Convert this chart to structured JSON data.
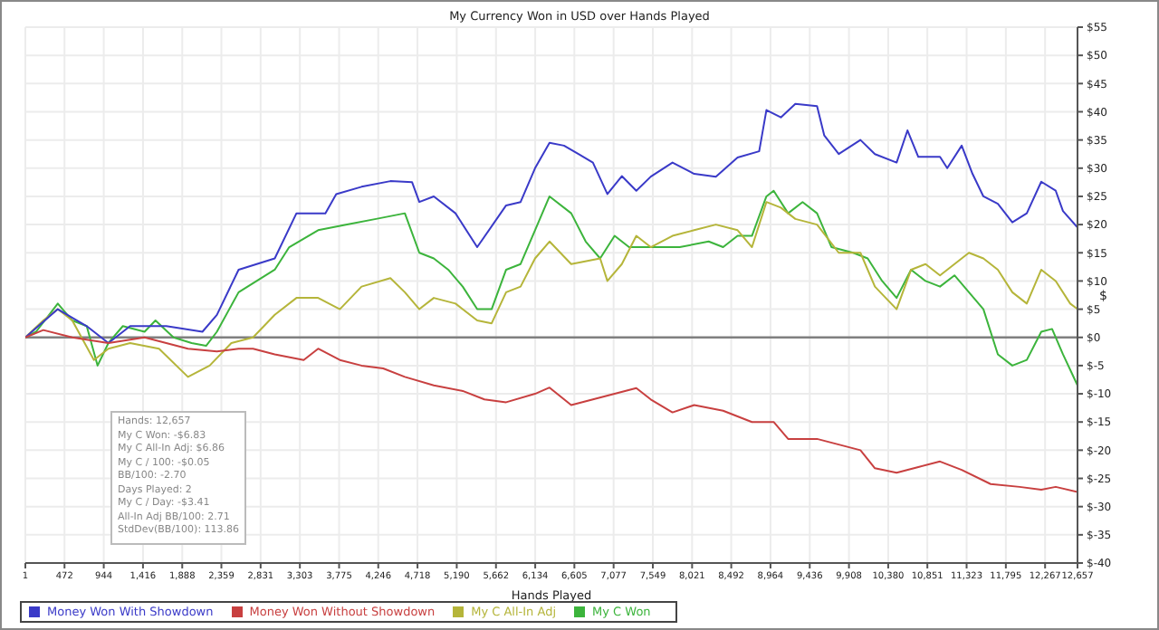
{
  "chart_data": {
    "type": "line",
    "title": "My Currency Won in USD over Hands Played",
    "xlabel": "Hands Played",
    "ylabel": "$",
    "xlim": [
      1,
      12657
    ],
    "xticks": [
      {
        "value": 1,
        "label": "1"
      },
      {
        "value": 472,
        "label": "472"
      },
      {
        "value": 944,
        "label": "944"
      },
      {
        "value": 1416,
        "label": "1,416"
      },
      {
        "value": 1888,
        "label": "1,888"
      },
      {
        "value": 2359,
        "label": "2,359"
      },
      {
        "value": 2831,
        "label": "2,831"
      },
      {
        "value": 3303,
        "label": "3,303"
      },
      {
        "value": 3775,
        "label": "3,775"
      },
      {
        "value": 4246,
        "label": "4,246"
      },
      {
        "value": 4718,
        "label": "4,718"
      },
      {
        "value": 5190,
        "label": "5,190"
      },
      {
        "value": 5662,
        "label": "5,662"
      },
      {
        "value": 6134,
        "label": "6,134"
      },
      {
        "value": 6605,
        "label": "6,605"
      },
      {
        "value": 7077,
        "label": "7,077"
      },
      {
        "value": 7549,
        "label": "7,549"
      },
      {
        "value": 8021,
        "label": "8,021"
      },
      {
        "value": 8492,
        "label": "8,492"
      },
      {
        "value": 8964,
        "label": "8,964"
      },
      {
        "value": 9436,
        "label": "9,436"
      },
      {
        "value": 9908,
        "label": "9,908"
      },
      {
        "value": 10380,
        "label": "10,380"
      },
      {
        "value": 10851,
        "label": "10,851"
      },
      {
        "value": 11323,
        "label": "11,323"
      },
      {
        "value": 11795,
        "label": "11,795"
      },
      {
        "value": 12267,
        "label": "12,267"
      },
      {
        "value": 12657,
        "label": "12,657"
      }
    ],
    "ylim": [
      -40,
      55
    ],
    "yticks": [
      {
        "value": -40,
        "label": "$-40"
      },
      {
        "value": -35,
        "label": "$-35"
      },
      {
        "value": -30,
        "label": "$-30"
      },
      {
        "value": -25,
        "label": "$-25"
      },
      {
        "value": -20,
        "label": "$-20"
      },
      {
        "value": -15,
        "label": "$-15"
      },
      {
        "value": -10,
        "label": "$-10"
      },
      {
        "value": -5,
        "label": "$-5"
      },
      {
        "value": 0,
        "label": "$0"
      },
      {
        "value": 5,
        "label": "$5"
      },
      {
        "value": 10,
        "label": "$10"
      },
      {
        "value": 15,
        "label": "$15"
      },
      {
        "value": 20,
        "label": "$20"
      },
      {
        "value": 25,
        "label": "$25"
      },
      {
        "value": 30,
        "label": "$30"
      },
      {
        "value": 35,
        "label": "$35"
      },
      {
        "value": 40,
        "label": "$40"
      },
      {
        "value": 45,
        "label": "$45"
      },
      {
        "value": 50,
        "label": "$50"
      },
      {
        "value": 55,
        "label": "$55"
      }
    ],
    "grid": true,
    "legend": "bottom left",
    "marker": "none",
    "line_style": "solid",
    "ref_lines": [
      {
        "axis": "y",
        "value": 0,
        "color": "#808080"
      }
    ],
    "series": [
      {
        "name": "My C Won",
        "color": "#3cb43c",
        "x": [
          1,
          130,
          391,
          565,
          739,
          870,
          1000,
          1174,
          1435,
          1566,
          1783,
          2001,
          2175,
          2305,
          2566,
          3001,
          3175,
          3523,
          3871,
          4219,
          4566,
          4740,
          4914,
          5088,
          5262,
          5436,
          5610,
          5784,
          5958,
          6132,
          6306,
          6567,
          6741,
          6915,
          7089,
          7263,
          7524,
          7872,
          8220,
          8394,
          8568,
          8741,
          8915,
          9002,
          9176,
          9350,
          9524,
          9698,
          9959,
          10133,
          10307,
          10481,
          10655,
          10829,
          11003,
          11177,
          11351,
          11525,
          11699,
          11873,
          12047,
          12221,
          12351,
          12482,
          12657
        ],
        "values": [
          0,
          1,
          6,
          3,
          2,
          -5,
          -1,
          2,
          1,
          3,
          0,
          -1,
          -1.5,
          1,
          8,
          12,
          16,
          19,
          20,
          21,
          22,
          15,
          14,
          12,
          9,
          5,
          5,
          12,
          13,
          19,
          25,
          22,
          17,
          14,
          18,
          16,
          16,
          16,
          17,
          16,
          18,
          18,
          25,
          26,
          22,
          24,
          22,
          16,
          15,
          14,
          10,
          7,
          12,
          10,
          9,
          11,
          8,
          5,
          -3,
          -5,
          -4,
          1,
          1.5,
          -3,
          -8.5
        ]
      },
      {
        "name": "My C All-In Adj",
        "color": "#b5b53a",
        "x": [
          1,
          217,
          391,
          565,
          826,
          1000,
          1261,
          1609,
          1957,
          2218,
          2479,
          2740,
          3001,
          3262,
          3523,
          3784,
          4045,
          4392,
          4566,
          4740,
          4914,
          5175,
          5436,
          5610,
          5784,
          5958,
          6132,
          6306,
          6567,
          6915,
          7002,
          7176,
          7350,
          7524,
          7785,
          8046,
          8307,
          8568,
          8741,
          8915,
          9089,
          9263,
          9524,
          9785,
          10046,
          10220,
          10481,
          10655,
          10829,
          11003,
          11177,
          11351,
          11525,
          11699,
          11873,
          12047,
          12221,
          12395,
          12569,
          12657
        ],
        "values": [
          0,
          3,
          5,
          3,
          -4,
          -2,
          -1,
          -2,
          -7,
          -5,
          -1,
          0,
          4,
          7,
          7,
          5,
          9,
          10.5,
          8,
          5,
          7,
          6,
          3,
          2.5,
          8,
          9,
          14,
          17,
          13,
          14,
          10,
          13,
          18,
          16,
          18,
          19,
          20,
          19,
          16,
          24,
          23,
          21,
          20,
          15,
          15,
          9,
          5,
          12,
          13,
          11,
          13,
          15,
          14,
          12,
          8,
          6,
          12,
          10,
          6,
          5
        ]
      },
      {
        "name": "Money Won With Showdown",
        "color": "#3a3ac8",
        "x": [
          1,
          391,
          739,
          1000,
          1261,
          1696,
          2131,
          2305,
          2566,
          3001,
          3262,
          3610,
          3740,
          4045,
          4392,
          4653,
          4740,
          4914,
          5175,
          5436,
          5784,
          5958,
          6132,
          6306,
          6480,
          6654,
          6828,
          7002,
          7176,
          7350,
          7524,
          7785,
          8046,
          8307,
          8568,
          8828,
          8915,
          9089,
          9263,
          9524,
          9611,
          9785,
          10046,
          10220,
          10481,
          10612,
          10742,
          11003,
          11090,
          11264,
          11394,
          11525,
          11699,
          11873,
          12047,
          12221,
          12395,
          12482,
          12657
        ],
        "values": [
          0,
          5,
          2,
          -1,
          2,
          2,
          1,
          4,
          12,
          14,
          22,
          22,
          25.4,
          26.7,
          27.7,
          27.5,
          24,
          25,
          22,
          16,
          23.4,
          24,
          30,
          34.5,
          34,
          32.5,
          31,
          25.4,
          28.6,
          26,
          28.5,
          31,
          29,
          28.5,
          31.9,
          33,
          40.3,
          39,
          41.4,
          41,
          35.8,
          32.5,
          35,
          32.5,
          31,
          36.7,
          32,
          32,
          30,
          34,
          29,
          25,
          23.7,
          20.4,
          22,
          27.6,
          26,
          22.4,
          19.5
        ]
      },
      {
        "name": "Money Won Without Showdown",
        "color": "#c84040",
        "x": [
          1,
          217,
          565,
          1000,
          1435,
          1957,
          2305,
          2566,
          2740,
          3001,
          3349,
          3523,
          3784,
          4045,
          4305,
          4566,
          4914,
          5262,
          5523,
          5784,
          6132,
          6306,
          6567,
          6828,
          7089,
          7350,
          7524,
          7785,
          8046,
          8394,
          8741,
          9002,
          9176,
          9524,
          9785,
          10046,
          10220,
          10481,
          10742,
          11003,
          11264,
          11612,
          11960,
          12221,
          12395,
          12657
        ],
        "values": [
          0,
          1.3,
          0,
          -1,
          0,
          -2,
          -2.5,
          -2,
          -2,
          -3,
          -4,
          -2,
          -4,
          -5,
          -5.5,
          -7,
          -8.5,
          -9.5,
          -11,
          -11.5,
          -10,
          -8.9,
          -12,
          -11,
          -10,
          -9,
          -11,
          -13.3,
          -12,
          -13,
          -15,
          -15,
          -18,
          -18,
          -19,
          -20,
          -23.2,
          -24,
          -23,
          -22,
          -23.5,
          -26,
          -26.5,
          -27,
          -26.5,
          -27.4
        ]
      }
    ],
    "annotations": [
      "Hands: 12,657",
      "My C Won: -$6.83",
      "My C All-In Adj: $6.86",
      "My C / 100: -$0.05",
      "BB/100: -2.70",
      "Days Played: 2",
      "My C / Day: -$3.41",
      "All-In Adj BB/100: 2.71",
      "StdDev(BB/100): 113.86"
    ]
  }
}
